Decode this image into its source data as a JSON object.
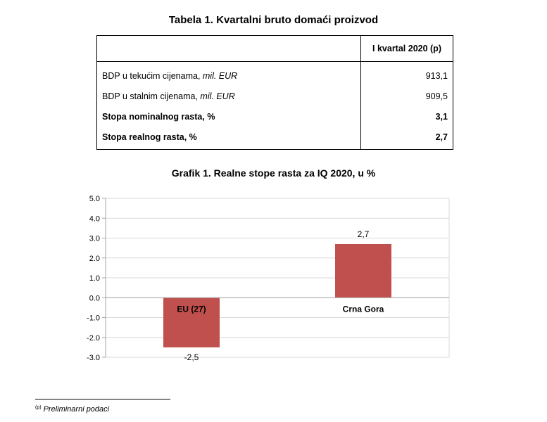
{
  "table": {
    "title": "Tabela 1. Kvartalni bruto domaći proizvod",
    "column_header": "I kvartal 2020 (p)",
    "rows": [
      {
        "label": "BDP u tekućim cijenama, ",
        "unit": "mil. EUR",
        "value": "913,1"
      },
      {
        "label": "BDP u stalnim cijenama, ",
        "unit": "mil. EUR",
        "value": "909,5"
      },
      {
        "label": "Stopa nominalnog rasta, %",
        "unit": "",
        "value": "3,1"
      },
      {
        "label": "Stopa realnog rasta, %",
        "unit": "",
        "value": "2,7"
      }
    ]
  },
  "chart_data": {
    "type": "bar",
    "title": "Grafik 1. Realne stope rasta za IQ 2020, u %",
    "categories": [
      "EU (27)",
      "Crna Gora"
    ],
    "values": [
      -2.5,
      2.7
    ],
    "data_labels": [
      "-2,5",
      "2,7"
    ],
    "ylim": [
      -3.0,
      5.0
    ],
    "y_ticks": [
      "-3.0",
      "-2.0",
      "-1.0",
      "0.0",
      "1.0",
      "2.0",
      "3.0",
      "4.0",
      "5.0"
    ],
    "y_tick_values": [
      -3,
      -2,
      -1,
      0,
      1,
      2,
      3,
      4,
      5
    ],
    "grid": true,
    "legend": "none",
    "bar_color": "#c0504d",
    "grid_color": "#d9d9d9",
    "axis_color": "#a6a6a6"
  },
  "footnote": {
    "marker": "(p)",
    "text": "Preliminarni podaci"
  }
}
